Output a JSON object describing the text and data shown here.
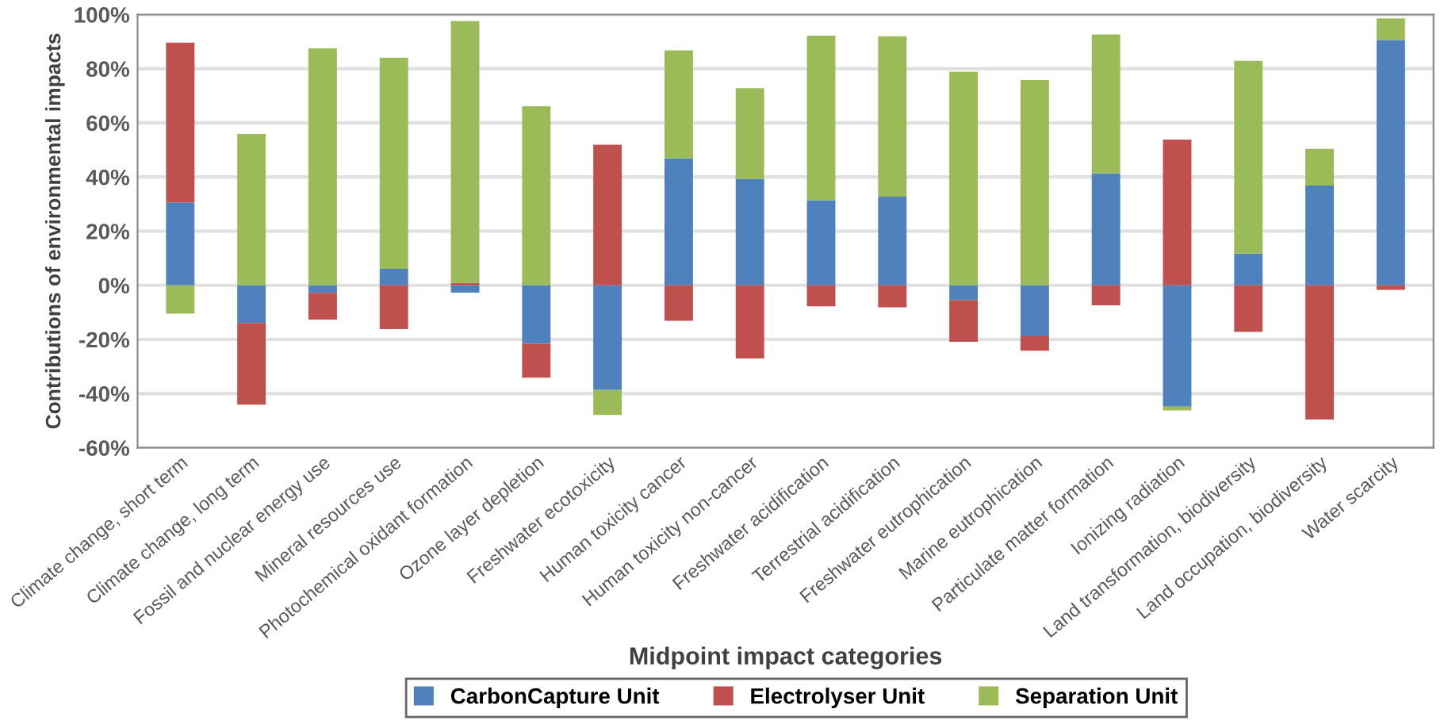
{
  "chart_data": {
    "type": "bar",
    "stacked": true,
    "xlabel": "Midpoint impact categories",
    "ylabel": "Contributions of environmental impacts",
    "categories": [
      "Climate change, short term",
      "Climate change, long term",
      "Fossil and nuclear energy use",
      "Mineral resources use",
      "Photochemical oxidant formation",
      "Ozone layer depletion",
      "Freshwater ecotoxicity",
      "Human toxicity cancer",
      "Human toxicity non-cancer",
      "Freshwater acidification",
      "Terrestrial acidification",
      "Freshwater eutrophication",
      "Marine eutrophication",
      "Particulate matter formation",
      "Ionizing radiation",
      "Land transformation, biodiversity",
      "Land occupation, biodiversity",
      "Water scarcity"
    ],
    "series": [
      {
        "name": "CarbonCapture Unit",
        "color": "#4f81bd",
        "values": [
          30.6,
          -13.9,
          -2.8,
          6.1,
          -2.7,
          -21.6,
          -38.7,
          46.9,
          39.3,
          31.4,
          32.7,
          -5.5,
          -18.8,
          41.3,
          -44.8,
          11.7,
          36.8,
          90.6
        ]
      },
      {
        "name": "Electrolyser Unit",
        "color": "#c0504d",
        "values": [
          59.0,
          -30.2,
          -9.9,
          -16.2,
          0.9,
          -12.5,
          51.9,
          -13.1,
          -27.0,
          -7.8,
          -8.1,
          -15.4,
          -5.4,
          -7.4,
          53.8,
          -17.2,
          -49.6,
          -1.7
        ]
      },
      {
        "name": "Separation Unit",
        "color": "#9bbb59",
        "values": [
          -10.5,
          55.9,
          87.5,
          78.0,
          96.7,
          66.1,
          -9.2,
          39.9,
          33.5,
          60.8,
          59.3,
          78.9,
          75.8,
          51.3,
          -1.4,
          71.2,
          13.6,
          8.0
        ]
      }
    ],
    "ylim": [
      -60,
      100
    ],
    "yticks": [
      {
        "value": -60,
        "label": "-60%"
      },
      {
        "value": -40,
        "label": "-40%"
      },
      {
        "value": -20,
        "label": "-20%"
      },
      {
        "value": 0,
        "label": "0%"
      },
      {
        "value": 20,
        "label": "20%"
      },
      {
        "value": 40,
        "label": "40%"
      },
      {
        "value": 60,
        "label": "60%"
      },
      {
        "value": 80,
        "label": "80%"
      },
      {
        "value": 100,
        "label": "100%"
      }
    ],
    "grid": "y",
    "legend": "bottom"
  }
}
